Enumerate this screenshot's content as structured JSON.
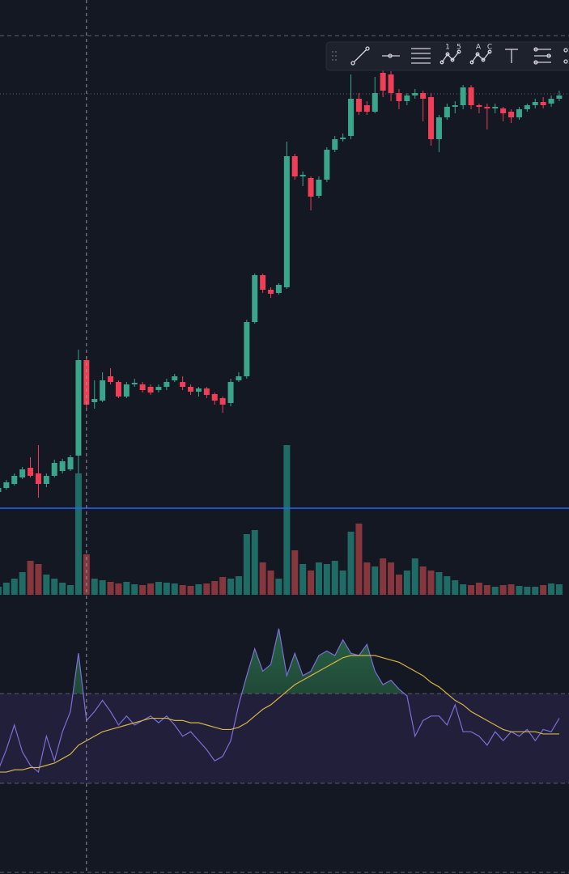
{
  "chart_data": {
    "type": "candlestick",
    "ylim": [
      0,
      740
    ],
    "open": [
      132,
      137,
      142,
      150,
      162,
      155,
      142,
      152,
      158,
      160,
      177,
      295,
      243,
      245,
      275,
      268,
      250,
      265,
      265,
      262,
      258,
      262,
      270,
      268,
      262,
      256,
      260,
      253,
      248,
      242,
      270,
      275,
      342,
      400,
      382,
      378,
      385,
      547,
      522,
      520,
      498,
      518,
      555,
      568,
      572,
      618,
      610,
      602,
      650,
      648,
      625,
      615,
      622,
      625,
      620,
      568,
      595,
      608,
      610,
      632,
      610,
      608,
      606,
      606,
      602,
      595,
      605,
      610,
      614,
      612,
      618
    ],
    "high": [
      140,
      147,
      155,
      163,
      175,
      190,
      155,
      172,
      173,
      178,
      308,
      300,
      270,
      280,
      285,
      270,
      268,
      272,
      268,
      265,
      265,
      272,
      278,
      275,
      265,
      262,
      262,
      255,
      250,
      272,
      280,
      345,
      402,
      402,
      385,
      390,
      565,
      550,
      528,
      522,
      522,
      558,
      572,
      575,
      648,
      625,
      615,
      645,
      655,
      652,
      630,
      625,
      630,
      628,
      625,
      598,
      612,
      615,
      635,
      635,
      612,
      612,
      612,
      608,
      605,
      608,
      612,
      618,
      620,
      622,
      628
    ],
    "low": [
      130,
      135,
      140,
      148,
      150,
      125,
      138,
      150,
      155,
      158,
      155,
      235,
      235,
      243,
      265,
      248,
      248,
      262,
      255,
      252,
      255,
      258,
      268,
      258,
      252,
      250,
      248,
      240,
      230,
      238,
      268,
      272,
      340,
      378,
      372,
      376,
      383,
      518,
      510,
      480,
      495,
      515,
      552,
      565,
      568,
      598,
      598,
      600,
      620,
      615,
      605,
      610,
      618,
      590,
      560,
      552,
      592,
      600,
      605,
      605,
      600,
      580,
      600,
      590,
      588,
      592,
      602,
      606,
      606,
      608,
      615
    ],
    "close": [
      137,
      144,
      152,
      160,
      152,
      142,
      152,
      168,
      170,
      175,
      295,
      240,
      247,
      270,
      268,
      250,
      265,
      267,
      258,
      255,
      262,
      268,
      275,
      262,
      256,
      260,
      252,
      245,
      240,
      268,
      275,
      342,
      400,
      382,
      377,
      388,
      547,
      522,
      524,
      497,
      518,
      555,
      568,
      570,
      618,
      602,
      602,
      625,
      628,
      625,
      615,
      622,
      625,
      618,
      568,
      595,
      608,
      610,
      632,
      610,
      608,
      606,
      608,
      600,
      595,
      605,
      610,
      614,
      610,
      618,
      622
    ],
    "up_color": "#3aa58a",
    "down_color": "#ef3e55",
    "last_price_line": 624,
    "price_line": 112,
    "crosshair_index": 11,
    "volume": {
      "ylim": [
        0,
        190
      ],
      "up_color": "#1f6b66",
      "down_color": "#86363d",
      "values": [
        10,
        15,
        20,
        28,
        42,
        38,
        25,
        20,
        15,
        12,
        150,
        50,
        20,
        18,
        16,
        14,
        16,
        13,
        12,
        14,
        16,
        15,
        14,
        12,
        11,
        13,
        14,
        17,
        22,
        20,
        23,
        75,
        80,
        40,
        30,
        20,
        185,
        55,
        38,
        30,
        40,
        38,
        42,
        30,
        78,
        88,
        40,
        35,
        45,
        40,
        25,
        30,
        45,
        35,
        30,
        28,
        23,
        18,
        13,
        12,
        15,
        12,
        10,
        12,
        13,
        11,
        10,
        10,
        12,
        14,
        13
      ]
    },
    "rsi": {
      "ylim": [
        0,
        100
      ],
      "band": [
        30,
        70
      ],
      "color": "#7b6fd6",
      "ma_color": "#d7b445",
      "values": [
        36,
        45,
        56,
        44,
        38,
        35,
        51,
        40,
        53,
        62,
        88,
        58,
        62,
        67,
        62,
        56,
        60,
        56,
        58,
        60,
        57,
        60,
        56,
        51,
        53,
        49,
        45,
        40,
        42,
        49,
        65,
        78,
        90,
        80,
        83,
        99,
        78,
        88,
        78,
        80,
        87,
        89,
        87,
        94,
        88,
        87,
        92,
        80,
        74,
        76,
        72,
        69,
        51,
        58,
        60,
        60,
        56,
        65,
        53,
        53,
        51,
        47,
        53,
        49,
        53,
        51,
        54,
        49,
        54,
        53,
        59
      ],
      "ma": [
        35,
        35,
        36,
        36,
        37,
        37,
        38,
        39,
        41,
        43,
        47,
        49,
        51,
        53,
        54,
        55,
        56,
        57,
        58,
        59,
        59,
        59,
        58,
        58,
        57,
        57,
        56,
        55,
        54,
        54,
        55,
        57,
        60,
        63,
        65,
        68,
        71,
        74,
        76,
        78,
        80,
        82,
        84,
        86,
        87,
        87,
        87,
        87,
        86,
        85,
        84,
        82,
        80,
        78,
        75,
        73,
        70,
        67,
        65,
        62,
        60,
        58,
        56,
        54,
        53,
        53,
        53,
        53,
        52,
        52,
        52
      ]
    }
  },
  "toolbar": {
    "labels": [
      "1",
      "5",
      "A",
      "C"
    ]
  }
}
